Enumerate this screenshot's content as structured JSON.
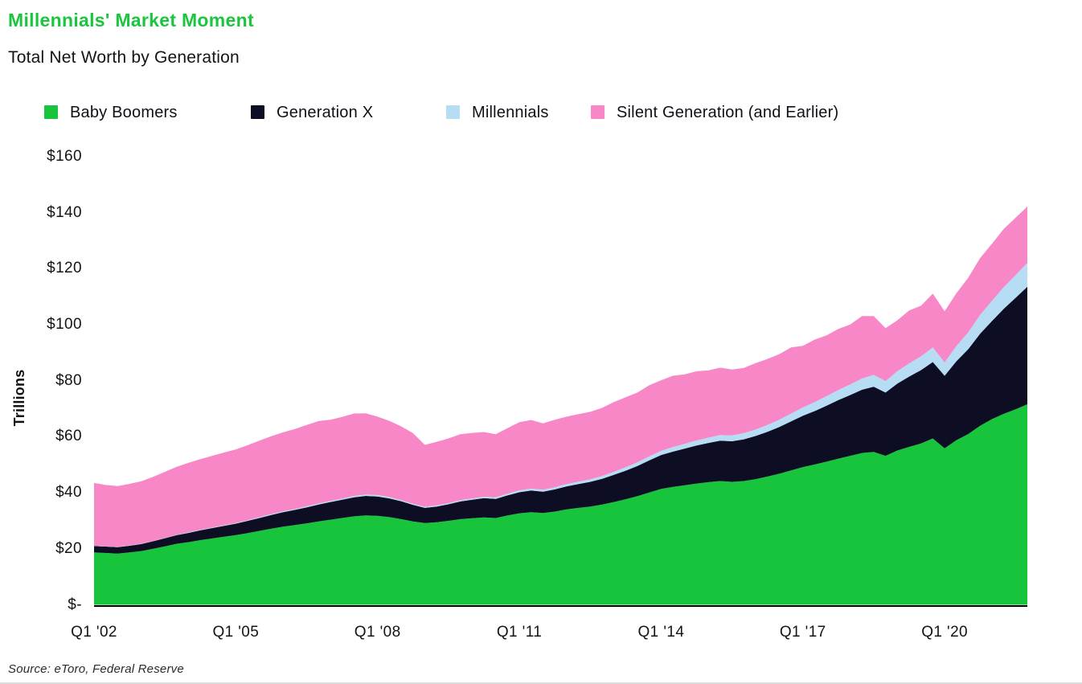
{
  "header": {
    "title": "Millennials' Market Moment",
    "subtitle": "Total Net Worth by Generation"
  },
  "source": "Source: eToro, Federal Reserve",
  "colors": {
    "title_green": "#1bc63f",
    "baby_boomers": "#17c43c",
    "generation_x": "#0d0d23",
    "millennials": "#b7ddf5",
    "silent_generation": "#f787c6",
    "axis_line": "#000000",
    "text": "#141414"
  },
  "chart_data": {
    "type": "area",
    "stacked": true,
    "grid": false,
    "legend_position": "top",
    "ylabel": "Trillions",
    "xlabel": "",
    "ylim": [
      0,
      160
    ],
    "y_ticks": [
      "$-",
      "$20",
      "$40",
      "$60",
      "$80",
      "$100",
      "$120",
      "$140",
      "$160"
    ],
    "x_axis_ticks": [
      "Q1 '02",
      "Q1 '05",
      "Q1 '08",
      "Q1 '11",
      "Q1 '14",
      "Q1 '17",
      "Q1 '20"
    ],
    "x_axis_tick_indices": [
      0,
      12,
      24,
      36,
      48,
      60,
      72
    ],
    "x": [
      "Q1 '02",
      "Q2 '02",
      "Q3 '02",
      "Q4 '02",
      "Q1 '03",
      "Q2 '03",
      "Q3 '03",
      "Q4 '03",
      "Q1 '04",
      "Q2 '04",
      "Q3 '04",
      "Q4 '04",
      "Q1 '05",
      "Q2 '05",
      "Q3 '05",
      "Q4 '05",
      "Q1 '06",
      "Q2 '06",
      "Q3 '06",
      "Q4 '06",
      "Q1 '07",
      "Q2 '07",
      "Q3 '07",
      "Q4 '07",
      "Q1 '08",
      "Q2 '08",
      "Q3 '08",
      "Q4 '08",
      "Q1 '09",
      "Q2 '09",
      "Q3 '09",
      "Q4 '09",
      "Q1 '10",
      "Q2 '10",
      "Q3 '10",
      "Q4 '10",
      "Q1 '11",
      "Q2 '11",
      "Q3 '11",
      "Q4 '11",
      "Q1 '12",
      "Q2 '12",
      "Q3 '12",
      "Q4 '12",
      "Q1 '13",
      "Q2 '13",
      "Q3 '13",
      "Q4 '13",
      "Q1 '14",
      "Q2 '14",
      "Q3 '14",
      "Q4 '14",
      "Q1 '15",
      "Q2 '15",
      "Q3 '15",
      "Q4 '15",
      "Q1 '16",
      "Q2 '16",
      "Q3 '16",
      "Q4 '16",
      "Q1 '17",
      "Q2 '17",
      "Q3 '17",
      "Q4 '17",
      "Q1 '18",
      "Q2 '18",
      "Q3 '18",
      "Q4 '18",
      "Q1 '19",
      "Q2 '19",
      "Q3 '19",
      "Q4 '19",
      "Q1 '20",
      "Q2 '20",
      "Q3 '20",
      "Q4 '20",
      "Q1 '21",
      "Q2 '21",
      "Q3 '21",
      "Q4 '21"
    ],
    "units": "USD trillions",
    "series": [
      {
        "name": "Baby Boomers",
        "color": "#17c43c",
        "values": [
          18.7,
          18.5,
          18.3,
          18.7,
          19.2,
          20.0,
          20.9,
          21.8,
          22.4,
          23.1,
          23.7,
          24.3,
          24.9,
          25.6,
          26.4,
          27.2,
          27.9,
          28.5,
          29.1,
          29.8,
          30.4,
          31.0,
          31.6,
          31.9,
          31.8,
          31.3,
          30.6,
          29.8,
          29.2,
          29.5,
          30.0,
          30.6,
          30.9,
          31.2,
          31.0,
          31.9,
          32.7,
          33.1,
          32.8,
          33.3,
          34.1,
          34.6,
          35.1,
          35.8,
          36.7,
          37.7,
          38.8,
          40.1,
          41.4,
          42.1,
          42.7,
          43.3,
          43.8,
          44.2,
          43.9,
          44.2,
          44.9,
          45.8,
          46.8,
          48.0,
          49.2,
          50.1,
          51.1,
          52.2,
          53.2,
          54.2,
          54.6,
          53.2,
          55.1,
          56.4,
          57.6,
          59.4,
          55.9,
          58.8,
          61.0,
          63.9,
          66.3,
          68.2,
          69.8,
          71.6
        ]
      },
      {
        "name": "Generation X",
        "color": "#0d0d23",
        "values": [
          2.3,
          2.3,
          2.3,
          2.4,
          2.5,
          2.7,
          2.9,
          3.1,
          3.3,
          3.5,
          3.7,
          3.9,
          4.1,
          4.4,
          4.6,
          4.9,
          5.2,
          5.4,
          5.7,
          6.0,
          6.3,
          6.5,
          6.8,
          7.0,
          6.9,
          6.7,
          6.4,
          5.9,
          5.4,
          5.6,
          5.9,
          6.3,
          6.6,
          6.9,
          6.8,
          7.2,
          7.5,
          7.7,
          7.6,
          7.9,
          8.2,
          8.5,
          8.8,
          9.2,
          9.7,
          10.2,
          10.8,
          11.5,
          12.1,
          12.6,
          13.1,
          13.6,
          14.0,
          14.4,
          14.5,
          14.9,
          15.4,
          16.0,
          16.7,
          17.5,
          18.3,
          19.1,
          20.0,
          20.9,
          21.7,
          22.6,
          23.3,
          22.6,
          23.9,
          25.1,
          26.2,
          27.3,
          25.9,
          28.2,
          30.3,
          32.9,
          35.0,
          37.5,
          39.8,
          42.0
        ]
      },
      {
        "name": "Millennials",
        "color": "#b7ddf5",
        "values": [
          0.1,
          0.1,
          0.1,
          0.1,
          0.1,
          0.1,
          0.1,
          0.1,
          0.2,
          0.2,
          0.2,
          0.2,
          0.2,
          0.2,
          0.3,
          0.3,
          0.3,
          0.3,
          0.4,
          0.4,
          0.4,
          0.4,
          0.5,
          0.5,
          0.5,
          0.5,
          0.4,
          0.4,
          0.4,
          0.4,
          0.4,
          0.5,
          0.5,
          0.5,
          0.6,
          0.6,
          0.7,
          0.7,
          0.7,
          0.8,
          0.8,
          0.9,
          0.9,
          1.0,
          1.1,
          1.2,
          1.3,
          1.4,
          1.5,
          1.6,
          1.7,
          1.8,
          1.9,
          2.0,
          2.1,
          2.2,
          2.3,
          2.4,
          2.6,
          2.8,
          3.0,
          3.2,
          3.4,
          3.6,
          3.8,
          4.0,
          4.2,
          4.1,
          4.4,
          4.7,
          4.9,
          5.2,
          4.8,
          5.4,
          6.0,
          6.7,
          7.2,
          7.7,
          8.1,
          8.5
        ]
      },
      {
        "name": "Silent Generation (and Earlier)",
        "color": "#f787c6",
        "values": [
          22.4,
          21.9,
          21.7,
          22.0,
          22.3,
          22.9,
          23.6,
          24.3,
          24.8,
          25.2,
          25.6,
          26.0,
          26.3,
          26.8,
          27.3,
          27.8,
          28.2,
          28.6,
          29.0,
          29.4,
          29.0,
          29.2,
          29.4,
          29.0,
          28.0,
          27.2,
          26.3,
          25.2,
          22.1,
          22.7,
          23.1,
          23.5,
          23.4,
          23.1,
          22.5,
          23.4,
          24.3,
          24.5,
          23.7,
          24.1,
          24.1,
          24.1,
          24.1,
          24.3,
          24.9,
          25.0,
          24.9,
          25.4,
          25.2,
          25.5,
          24.8,
          24.7,
          24.0,
          24.1,
          23.5,
          23.3,
          23.7,
          23.6,
          23.4,
          23.6,
          22.0,
          22.3,
          21.7,
          21.8,
          21.4,
          22.3,
          21.0,
          18.9,
          18.2,
          18.9,
          18.1,
          19.2,
          18.2,
          18.9,
          19.5,
          20.3,
          20.4,
          20.8,
          20.5,
          20.1
        ]
      }
    ]
  }
}
